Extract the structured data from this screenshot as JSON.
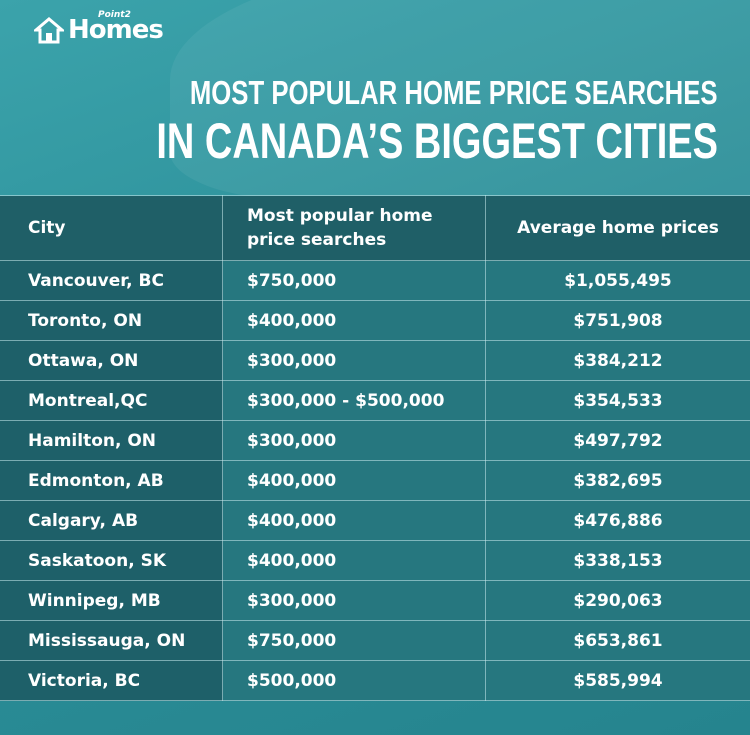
{
  "logo": {
    "small": "Point2",
    "big": "Homes"
  },
  "header": {
    "title_line1": "MOST POPULAR HOME PRICE SEARCHES",
    "title_line2": "IN CANADA’S BIGGEST CITIES"
  },
  "table": {
    "columns": [
      "City",
      "Most popular home price searches",
      "Average home prices"
    ],
    "rows": [
      [
        "Vancouver, BC",
        "$750,000",
        "$1,055,495"
      ],
      [
        "Toronto, ON",
        "$400,000",
        "$751,908"
      ],
      [
        "Ottawa, ON",
        "$300,000",
        "$384,212"
      ],
      [
        "Montreal,QC",
        "$300,000 - $500,000",
        "$354,533"
      ],
      [
        "Hamilton, ON",
        "$300,000",
        "$497,792"
      ],
      [
        "Edmonton, AB",
        "$400,000",
        "$382,695"
      ],
      [
        "Calgary, AB",
        "$400,000",
        "$476,886"
      ],
      [
        "Saskatoon, SK",
        "$400,000",
        "$338,153"
      ],
      [
        "Winnipeg, MB",
        "$300,000",
        "$290,063"
      ],
      [
        "Mississauga, ON",
        "$750,000",
        "$653,861"
      ],
      [
        "Victoria, BC",
        "$500,000",
        "$585,994"
      ]
    ]
  }
}
